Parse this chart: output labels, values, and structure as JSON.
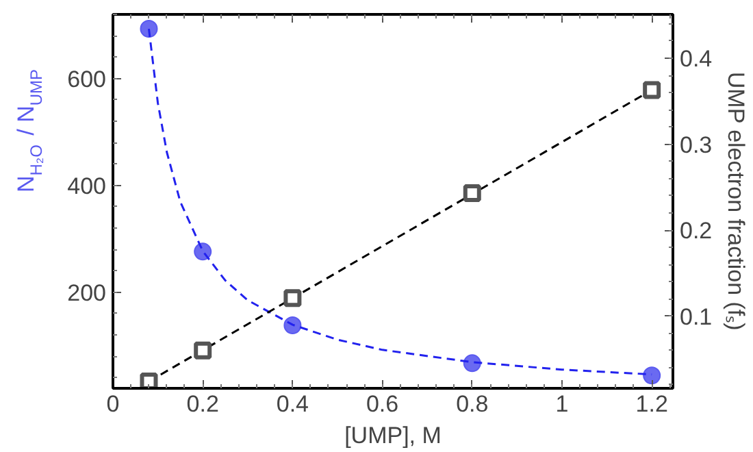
{
  "chart_data": {
    "type": "scatter",
    "xlabel": "[UMP], M",
    "ylabel": "N$_{H₂O}$ / N$_{UMP}$",
    "y2label": "UMP electron fraction (fₛ)",
    "xlim": [
      0,
      1.247
    ],
    "xticks": [
      0,
      0.2,
      0.4,
      0.6,
      0.8,
      1,
      1.2
    ],
    "ylim": [
      20,
      720
    ],
    "yticks": [
      200,
      400,
      600
    ],
    "y2lim": [
      0.016,
      0.451
    ],
    "y2ticks": [
      0.1,
      0.2,
      0.3,
      0.4
    ],
    "grid": false,
    "series": [
      {
        "color": "#5a5af0",
        "marker": "circle",
        "x": [
          0.08,
          0.2,
          0.4,
          0.8,
          1.2
        ],
        "values": [
          693,
          276,
          138,
          67,
          44
        ]
      },
      {
        "type": "line",
        "color": "#2222ee",
        "line_style": "dashed",
        "x": [
          0.08,
          0.1,
          0.12,
          0.15,
          0.2,
          0.25,
          0.3,
          0.4,
          0.5,
          0.6,
          0.8,
          1.0,
          1.2
        ],
        "values": [
          693,
          554,
          462,
          369,
          277,
          222,
          185,
          139,
          111,
          92,
          69,
          55,
          46
        ]
      },
      {
        "type": "line",
        "color": "#000000",
        "line_style": "dashed",
        "axis": "y2",
        "x": [
          0.08,
          1.2
        ],
        "values": [
          0.024,
          0.363
        ]
      },
      {
        "type": "scatter",
        "color": "#555555",
        "marker": "square",
        "axis": "y2",
        "x": [
          0.08,
          0.2,
          0.4,
          0.8,
          1.2
        ],
        "values": [
          0.024,
          0.06,
          0.121,
          0.243,
          0.363
        ]
      }
    ]
  }
}
